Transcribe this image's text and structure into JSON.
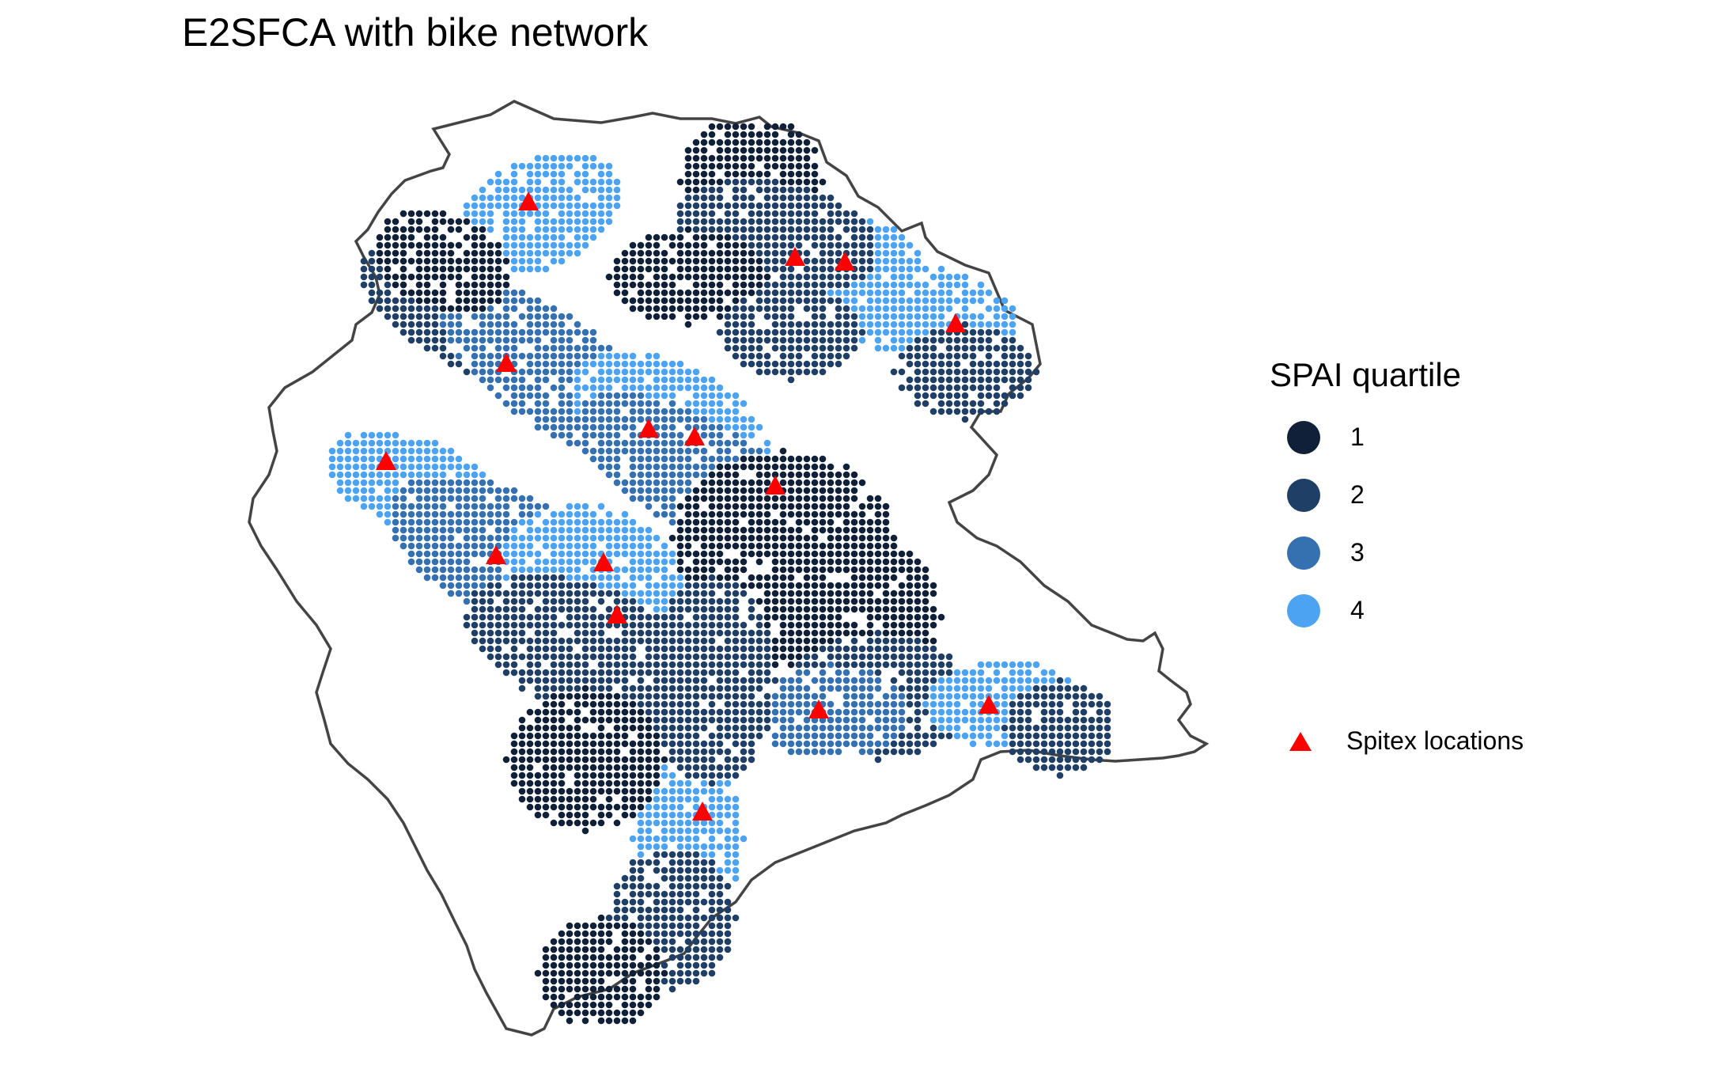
{
  "title": "E2SFCA with bike network",
  "legend": {
    "title": "SPAI quartile",
    "items": [
      {
        "label": "1",
        "color": "#0f2038"
      },
      {
        "label": "2",
        "color": "#1f3f66"
      },
      {
        "label": "3",
        "color": "#3570b0"
      },
      {
        "label": "4",
        "color": "#4ca3f1"
      }
    ],
    "marker_label": "Spitex locations",
    "marker_color": "#ff0000"
  },
  "map": {
    "boundary_color": "#444444"
  }
}
